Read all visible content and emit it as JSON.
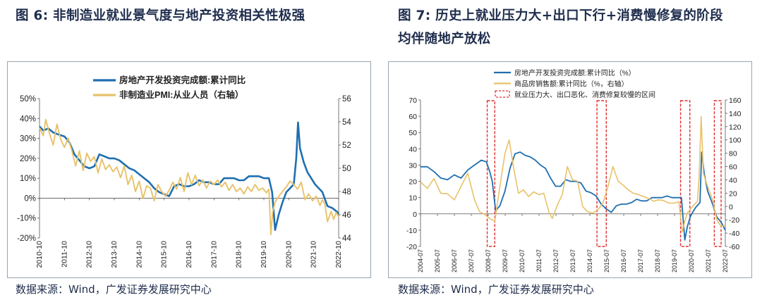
{
  "left": {
    "fig_num": "图 6",
    "fig_sep": ":",
    "fig_text": "非制造业就业景气度与地产投资相关性极强",
    "source": "数据来源：Wind，广发证券发展研究中心"
  },
  "right": {
    "fig_num": "图 7",
    "fig_sep": ":",
    "fig_line1": "历史上就业压力大+出口下行+消费慢修复的阶段",
    "fig_line2": "均伴随地产放松",
    "source": "数据来源：Wind，广发证券发展研究中心"
  },
  "colors": {
    "blue": "#1f6fb0",
    "gold": "#e8c26a",
    "red": "#e03030"
  },
  "chart_data": [
    {
      "type": "line",
      "title": "非制造业就业景气度与地产投资相关性极强",
      "legend": [
        "房地产开发投资完成额:累计同比",
        "非制造业PMI:从业人员（右轴）"
      ],
      "ylim": [
        -20,
        50
      ],
      "yticks": [
        "-20%",
        "-10%",
        "0%",
        "10%",
        "20%",
        "30%",
        "40%",
        "50%"
      ],
      "y2lim": [
        44,
        56
      ],
      "y2ticks": [
        "44",
        "46",
        "48",
        "50",
        "52",
        "54",
        "56"
      ],
      "xrange": [
        2010.75,
        2022.75
      ],
      "xticks": [
        "2010-10",
        "2011-10",
        "2012-10",
        "2013-10",
        "2014-10",
        "2015-10",
        "2016-10",
        "2017-10",
        "2018-10",
        "2019-10",
        "2020-10",
        "2021-10",
        "2022-10"
      ],
      "series": [
        {
          "name": "房地产开发投资完成额:累计同比",
          "axis": "left",
          "color": "#1f6fb0",
          "x": [
            2010.75,
            2010.9,
            2011.1,
            2011.3,
            2011.5,
            2011.75,
            2011.95,
            2012.15,
            2012.35,
            2012.55,
            2012.75,
            2012.95,
            2013.15,
            2013.35,
            2013.55,
            2013.75,
            2013.95,
            2014.15,
            2014.35,
            2014.55,
            2014.75,
            2014.95,
            2015.15,
            2015.35,
            2015.55,
            2015.75,
            2015.95,
            2016.15,
            2016.35,
            2016.55,
            2016.75,
            2016.95,
            2017.15,
            2017.35,
            2017.55,
            2017.75,
            2017.95,
            2018.15,
            2018.35,
            2018.55,
            2018.75,
            2018.95,
            2019.15,
            2019.35,
            2019.55,
            2019.75,
            2019.95,
            2020.08,
            2020.2,
            2020.35,
            2020.5,
            2020.65,
            2020.8,
            2020.95,
            2021.05,
            2021.12,
            2021.2,
            2021.35,
            2021.5,
            2021.65,
            2021.8,
            2021.95,
            2022.1,
            2022.3,
            2022.5,
            2022.7,
            2022.75
          ],
          "values": [
            36,
            34,
            35,
            33,
            32,
            31,
            28,
            22,
            19,
            16,
            15,
            16,
            22,
            21,
            20,
            20,
            19,
            17,
            15,
            14,
            12,
            10,
            8,
            5,
            3,
            2,
            1,
            6,
            7,
            6,
            6,
            7,
            9,
            8,
            8,
            7,
            7,
            10,
            10,
            10,
            9,
            9,
            11,
            11,
            11,
            10,
            10,
            3,
            -16,
            -8,
            -2,
            3,
            5,
            7,
            20,
            38,
            25,
            18,
            13,
            10,
            7,
            5,
            3,
            -4,
            -5,
            -7,
            -8
          ]
        },
        {
          "name": "非制造业PMI:从业人员（右轴）",
          "axis": "right",
          "color": "#e8c26a",
          "x": [
            2010.75,
            2010.9,
            2011.0,
            2011.15,
            2011.3,
            2011.45,
            2011.6,
            2011.75,
            2011.9,
            2012.05,
            2012.2,
            2012.35,
            2012.5,
            2012.65,
            2012.8,
            2012.95,
            2013.1,
            2013.25,
            2013.4,
            2013.55,
            2013.7,
            2013.85,
            2014.0,
            2014.15,
            2014.3,
            2014.45,
            2014.6,
            2014.75,
            2014.9,
            2015.05,
            2015.2,
            2015.35,
            2015.5,
            2015.65,
            2015.8,
            2015.95,
            2016.1,
            2016.25,
            2016.4,
            2016.55,
            2016.7,
            2016.85,
            2017.0,
            2017.15,
            2017.3,
            2017.45,
            2017.6,
            2017.75,
            2017.9,
            2018.05,
            2018.2,
            2018.35,
            2018.5,
            2018.65,
            2018.8,
            2018.95,
            2019.1,
            2019.25,
            2019.4,
            2019.55,
            2019.7,
            2019.85,
            2019.95,
            2020.03,
            2020.1,
            2020.2,
            2020.35,
            2020.5,
            2020.65,
            2020.8,
            2020.95,
            2021.1,
            2021.25,
            2021.4,
            2021.55,
            2021.7,
            2021.85,
            2022.0,
            2022.1,
            2022.2,
            2022.3,
            2022.45,
            2022.55,
            2022.65,
            2022.75
          ],
          "values": [
            53.5,
            52.8,
            54.2,
            53.0,
            52.0,
            53.8,
            52.5,
            51.8,
            52.6,
            51.5,
            50.2,
            51.5,
            49.8,
            51.3,
            50.6,
            51.0,
            49.6,
            50.8,
            49.9,
            50.3,
            49.7,
            50.1,
            49.2,
            50.2,
            48.6,
            49.4,
            48.0,
            48.9,
            47.4,
            48.5,
            48.3,
            47.2,
            48.6,
            48.0,
            47.6,
            48.1,
            48.8,
            48.2,
            49.2,
            48.0,
            49.6,
            48.6,
            49.4,
            48.5,
            49.0,
            48.3,
            48.9,
            48.6,
            49.0,
            48.4,
            48.8,
            48.1,
            48.6,
            48.0,
            48.3,
            47.8,
            48.4,
            48.0,
            48.6,
            48.1,
            48.3,
            47.9,
            48.2,
            44.3,
            46.2,
            47.1,
            47.6,
            48.0,
            48.4,
            48.9,
            48.6,
            48.2,
            48.8,
            47.3,
            47.8,
            47.2,
            47.6,
            46.8,
            47.3,
            46.9,
            45.4,
            46.3,
            45.6,
            46.2,
            45.8
          ]
        }
      ]
    },
    {
      "type": "line",
      "title": "历史上就业压力大+出口下行+消费慢修复的阶段均伴随地产放松",
      "legend": [
        "房地产开发投资完成额:累计同比（%）",
        "商品房销售额:累计同比（%，右轴）",
        "就业压力大、出口恶化、消费修复较慢的区间"
      ],
      "ylim": [
        -20,
        70
      ],
      "yticks": [
        "-20",
        "-10",
        "0",
        "10",
        "20",
        "30",
        "40",
        "50",
        "60",
        "70"
      ],
      "y2lim": [
        -60,
        160
      ],
      "y2ticks": [
        "-60",
        "-40",
        "-20",
        "0",
        "20",
        "40",
        "60",
        "80",
        "100",
        "120",
        "140",
        "160"
      ],
      "xrange": [
        2004.5,
        2022.55
      ],
      "xticks": [
        "2004-07",
        "2005-07",
        "2006-07",
        "2007-07",
        "2008-07",
        "2009-07",
        "2010-07",
        "2011-07",
        "2012-07",
        "2013-07",
        "2014-07",
        "2015-07",
        "2016-07",
        "2017-07",
        "2018-07",
        "2019-07",
        "2020-07",
        "2021-07",
        "2022-07"
      ],
      "shaded_periods": [
        [
          2008.45,
          2008.9
        ],
        [
          2014.95,
          2015.5
        ],
        [
          2019.9,
          2020.45
        ],
        [
          2021.9,
          2022.3
        ]
      ],
      "series": [
        {
          "name": "房地产开发投资完成额:累计同比（%）",
          "axis": "left",
          "color": "#1f6fb0",
          "x": [
            2004.5,
            2004.9,
            2005.3,
            2005.7,
            2006.1,
            2006.5,
            2006.9,
            2007.3,
            2007.7,
            2008.1,
            2008.4,
            2008.6,
            2008.75,
            2008.95,
            2009.2,
            2009.5,
            2009.8,
            2010.1,
            2010.4,
            2010.7,
            2011.0,
            2011.3,
            2011.6,
            2011.9,
            2012.2,
            2012.5,
            2012.8,
            2013.1,
            2013.4,
            2013.7,
            2014.0,
            2014.3,
            2014.6,
            2014.9,
            2015.2,
            2015.5,
            2015.8,
            2016.1,
            2016.4,
            2016.7,
            2017.0,
            2017.3,
            2017.6,
            2017.9,
            2018.2,
            2018.5,
            2018.8,
            2019.1,
            2019.4,
            2019.7,
            2019.95,
            2020.15,
            2020.3,
            2020.5,
            2020.8,
            2021.05,
            2021.15,
            2021.3,
            2021.5,
            2021.8,
            2022.05,
            2022.3,
            2022.55
          ],
          "values": [
            29,
            29,
            26,
            22,
            21,
            24,
            22,
            27,
            30,
            33,
            32,
            26,
            20,
            2,
            5,
            14,
            28,
            37,
            38,
            36,
            35,
            33,
            30,
            28,
            22,
            17,
            17,
            21,
            20,
            20,
            19,
            14,
            13,
            11,
            6,
            3,
            1,
            5,
            6,
            6,
            7,
            9,
            8,
            8,
            10,
            10,
            10,
            11,
            10,
            10,
            10,
            -16,
            -8,
            -1,
            4,
            7,
            38,
            25,
            14,
            6,
            -2,
            -5,
            -10
          ]
        },
        {
          "name": "商品房销售额:累计同比（%，右轴）",
          "axis": "right",
          "color": "#e8c26a",
          "x": [
            2004.5,
            2004.9,
            2005.3,
            2005.7,
            2006.1,
            2006.5,
            2006.9,
            2007.3,
            2007.7,
            2008.0,
            2008.3,
            2008.6,
            2008.9,
            2009.2,
            2009.5,
            2009.75,
            2010.0,
            2010.3,
            2010.6,
            2010.9,
            2011.2,
            2011.5,
            2011.8,
            2012.1,
            2012.3,
            2012.6,
            2012.9,
            2013.2,
            2013.5,
            2013.8,
            2014.1,
            2014.4,
            2014.7,
            2015.0,
            2015.3,
            2015.6,
            2015.9,
            2016.2,
            2016.5,
            2016.8,
            2017.1,
            2017.4,
            2017.7,
            2018.0,
            2018.3,
            2018.6,
            2018.9,
            2019.2,
            2019.5,
            2019.8,
            2020.0,
            2020.15,
            2020.3,
            2020.6,
            2020.9,
            2021.0,
            2021.12,
            2021.25,
            2021.5,
            2021.8,
            2022.05,
            2022.3,
            2022.55
          ],
          "values": [
            37,
            27,
            42,
            20,
            19,
            10,
            30,
            50,
            10,
            -8,
            -12,
            -18,
            -22,
            30,
            80,
            100,
            60,
            20,
            25,
            15,
            22,
            18,
            20,
            -8,
            -18,
            2,
            18,
            60,
            40,
            38,
            0,
            -8,
            -10,
            -5,
            5,
            30,
            60,
            38,
            32,
            25,
            20,
            18,
            15,
            12,
            8,
            10,
            9,
            5,
            5,
            7,
            -38,
            -22,
            -10,
            0,
            8,
            45,
            135,
            50,
            30,
            10,
            -20,
            -30,
            -28
          ]
        }
      ]
    }
  ]
}
